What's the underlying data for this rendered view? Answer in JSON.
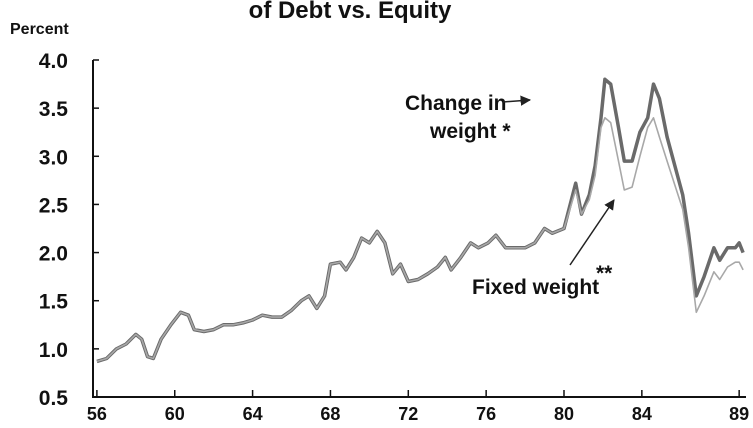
{
  "chart_data": {
    "type": "line",
    "title": "of Debt vs. Equity",
    "y_label": "Percent",
    "annotations": [
      "Change in",
      "weight *",
      "Fixed weight",
      "**"
    ],
    "x": [
      56.0,
      56.5,
      57.0,
      57.5,
      58.0,
      58.3,
      58.6,
      58.9,
      59.3,
      59.8,
      60.3,
      60.7,
      61.0,
      61.5,
      62.0,
      62.5,
      63.0,
      63.5,
      64.0,
      64.5,
      65.0,
      65.5,
      66.0,
      66.5,
      66.9,
      67.3,
      67.7,
      68.0,
      68.5,
      68.8,
      69.2,
      69.6,
      70.0,
      70.4,
      70.8,
      71.2,
      71.6,
      72.0,
      72.5,
      73.0,
      73.5,
      73.9,
      74.2,
      74.7,
      75.2,
      75.6,
      76.1,
      76.5,
      77.0,
      77.5,
      78.0,
      78.5,
      79.0,
      79.4,
      80.0,
      80.6,
      80.9,
      81.3,
      81.6,
      81.9,
      82.1,
      82.4,
      82.8,
      83.1,
      83.5,
      83.9,
      84.3,
      84.6,
      84.9,
      85.3,
      85.7,
      86.1,
      86.4,
      86.8,
      87.2,
      87.7,
      88.0,
      88.4,
      88.8,
      89.0,
      89.2
    ],
    "series": [
      {
        "color": "#6a6a6a",
        "values": [
          0.87,
          0.9,
          1.0,
          1.05,
          1.15,
          1.1,
          0.92,
          0.9,
          1.1,
          1.25,
          1.38,
          1.35,
          1.2,
          1.18,
          1.2,
          1.25,
          1.25,
          1.27,
          1.3,
          1.35,
          1.33,
          1.33,
          1.4,
          1.5,
          1.55,
          1.42,
          1.55,
          1.88,
          1.9,
          1.82,
          1.95,
          2.15,
          2.1,
          2.22,
          2.1,
          1.78,
          1.88,
          1.7,
          1.72,
          1.78,
          1.85,
          1.95,
          1.82,
          1.95,
          2.1,
          2.05,
          2.1,
          2.18,
          2.05,
          2.05,
          2.05,
          2.1,
          2.25,
          2.2,
          2.25,
          2.72,
          2.4,
          2.6,
          2.9,
          3.4,
          3.8,
          3.75,
          3.3,
          2.95,
          2.95,
          3.25,
          3.4,
          3.75,
          3.6,
          3.2,
          2.9,
          2.6,
          2.2,
          1.55,
          1.75,
          2.05,
          1.92,
          2.05,
          2.05,
          2.1,
          2.0
        ]
      },
      {
        "color": "#a8a8a8",
        "values": [
          0.87,
          0.9,
          1.0,
          1.05,
          1.15,
          1.1,
          0.92,
          0.9,
          1.1,
          1.25,
          1.38,
          1.35,
          1.2,
          1.18,
          1.2,
          1.25,
          1.25,
          1.27,
          1.3,
          1.35,
          1.33,
          1.33,
          1.4,
          1.5,
          1.55,
          1.42,
          1.55,
          1.88,
          1.9,
          1.82,
          1.95,
          2.15,
          2.1,
          2.22,
          2.1,
          1.78,
          1.88,
          1.7,
          1.72,
          1.78,
          1.85,
          1.95,
          1.82,
          1.95,
          2.1,
          2.05,
          2.1,
          2.18,
          2.05,
          2.05,
          2.05,
          2.1,
          2.25,
          2.2,
          2.25,
          2.65,
          2.4,
          2.55,
          2.8,
          3.3,
          3.4,
          3.35,
          2.95,
          2.65,
          2.68,
          3.0,
          3.3,
          3.4,
          3.2,
          2.95,
          2.7,
          2.45,
          2.05,
          1.38,
          1.55,
          1.8,
          1.72,
          1.85,
          1.9,
          1.9,
          1.82
        ]
      }
    ],
    "xlim": [
      55.8,
      89.3
    ],
    "xticks": [
      56,
      60,
      64,
      68,
      72,
      76,
      80,
      84,
      89
    ],
    "ylim": [
      0.5,
      4.0
    ],
    "yticks": [
      {
        "value": 0.5,
        "label": "0.5"
      },
      {
        "value": 1,
        "label": "1.0"
      },
      {
        "value": 1.5,
        "label": "1.5"
      },
      {
        "value": 2,
        "label": "2.0"
      },
      {
        "value": 2.5,
        "label": "2.5"
      },
      {
        "value": 3,
        "label": "3.0"
      },
      {
        "value": 3.5,
        "label": "3.5"
      },
      {
        "value": 4,
        "label": "4.0"
      }
    ]
  }
}
